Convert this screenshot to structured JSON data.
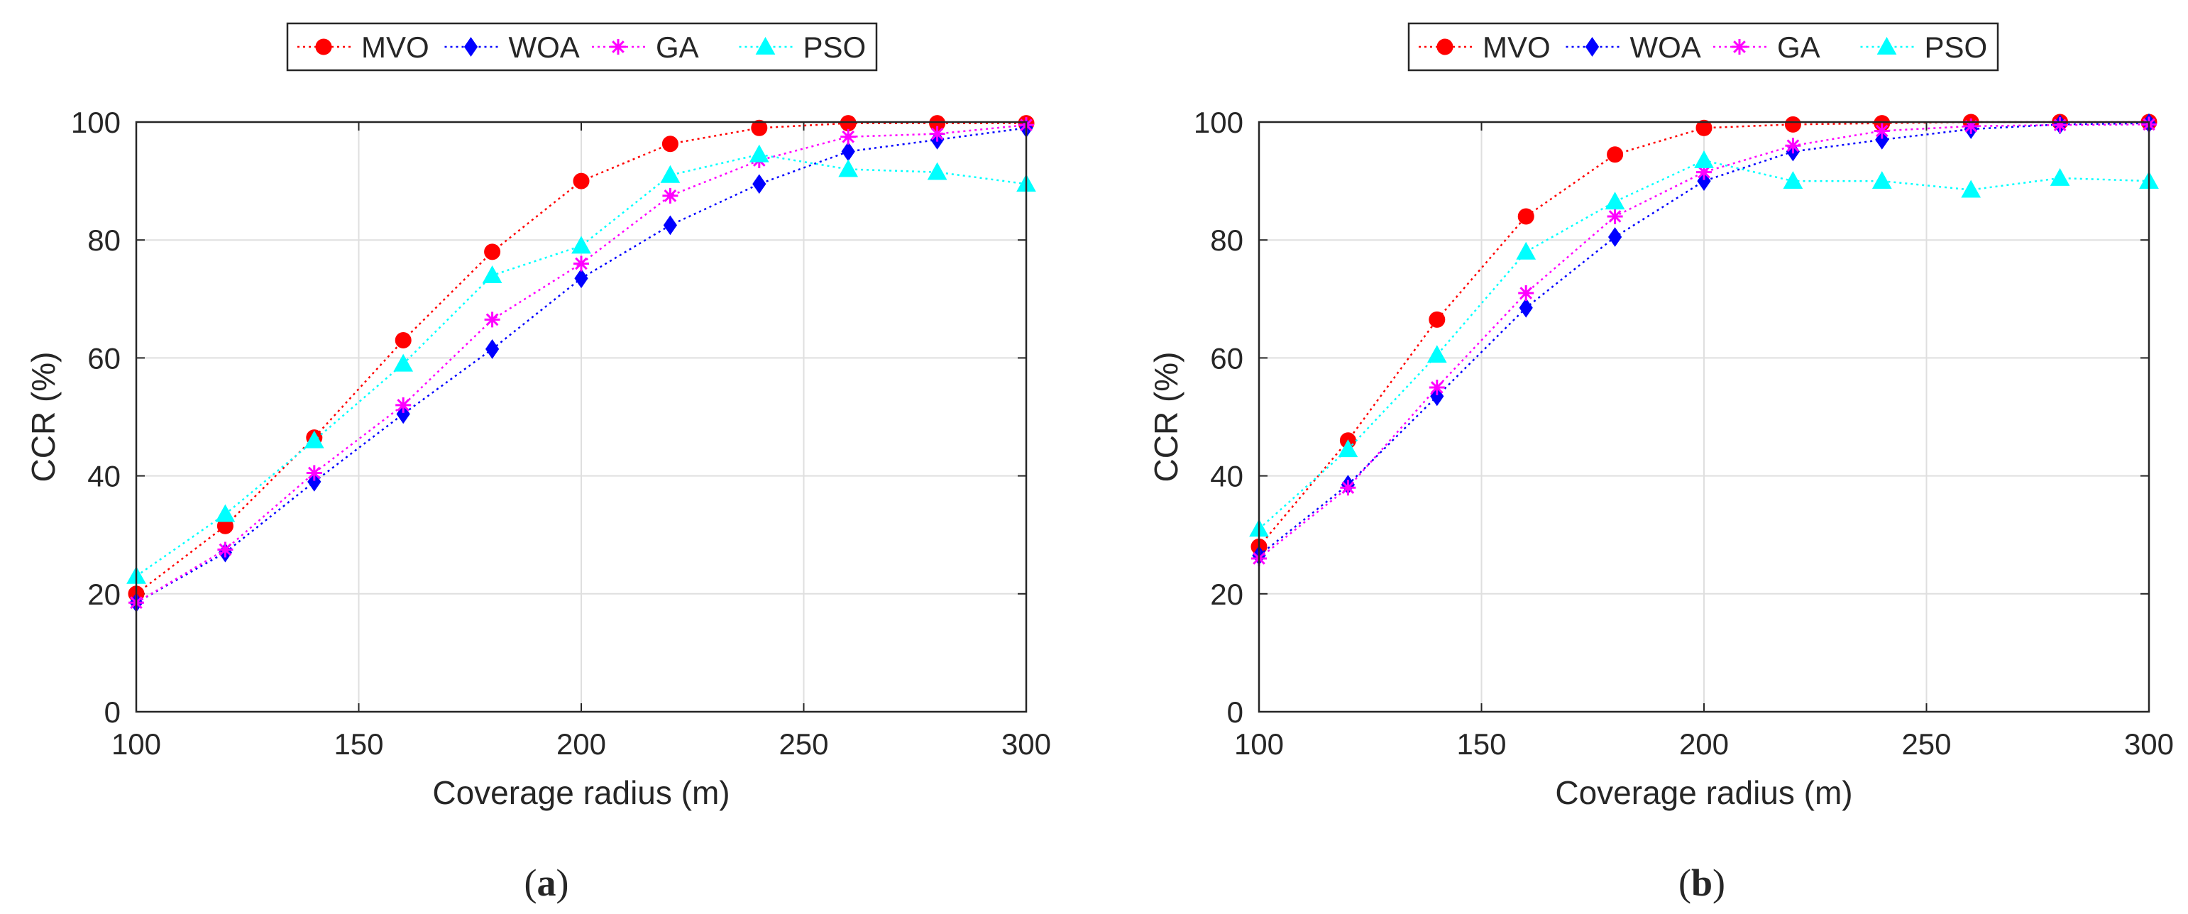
{
  "series_styles": [
    {
      "name": "MVO",
      "color": "#ff0000",
      "marker": "circle"
    },
    {
      "name": "WOA",
      "color": "#0000ff",
      "marker": "diamond"
    },
    {
      "name": "GA",
      "color": "#ff00ff",
      "marker": "asterisk"
    },
    {
      "name": "PSO",
      "color": "#00ffff",
      "marker": "triangle"
    }
  ],
  "chart_data": [
    {
      "type": "line",
      "panel": "a",
      "caption_letter": "a",
      "caption_open": "(",
      "caption_close": ")",
      "xlabel": "Coverage radius (m)",
      "ylabel": "CCR (%)",
      "xlim": [
        100,
        300
      ],
      "ylim": [
        0,
        100
      ],
      "xticks": [
        100,
        150,
        200,
        250,
        300
      ],
      "yticks": [
        0,
        20,
        40,
        60,
        80,
        100
      ],
      "grid": true,
      "legend": "top-center, horizontal",
      "x": [
        100,
        120,
        140,
        160,
        180,
        200,
        220,
        240,
        260,
        280,
        300
      ],
      "series": [
        {
          "name": "MVO",
          "values": [
            20,
            31.5,
            46.5,
            63,
            78,
            90,
            96.3,
            99,
            99.8,
            99.8,
            99.8
          ]
        },
        {
          "name": "WOA",
          "values": [
            18.5,
            27,
            39,
            50.5,
            61.5,
            73.5,
            82.5,
            89.5,
            95,
            97,
            99
          ]
        },
        {
          "name": "GA",
          "values": [
            18.5,
            27.5,
            40.5,
            52,
            66.5,
            76,
            87.5,
            93.5,
            97.5,
            98,
            99.5
          ]
        },
        {
          "name": "PSO",
          "values": [
            23,
            33.5,
            46,
            59,
            74,
            79,
            91,
            94.5,
            92,
            91.5,
            89.5
          ]
        }
      ]
    },
    {
      "type": "line",
      "panel": "b",
      "caption_letter": "b",
      "caption_open": "(",
      "caption_close": ")",
      "xlabel": "Coverage radius (m)",
      "ylabel": "CCR (%)",
      "xlim": [
        100,
        300
      ],
      "ylim": [
        0,
        100
      ],
      "xticks": [
        100,
        150,
        200,
        250,
        300
      ],
      "yticks": [
        0,
        20,
        40,
        60,
        80,
        100
      ],
      "grid": true,
      "legend": "top-center, horizontal",
      "x": [
        100,
        120,
        140,
        160,
        180,
        200,
        220,
        240,
        260,
        280,
        300
      ],
      "series": [
        {
          "name": "MVO",
          "values": [
            28,
            46,
            66.5,
            84,
            94.5,
            99,
            99.6,
            99.8,
            100,
            100,
            100
          ]
        },
        {
          "name": "WOA",
          "values": [
            26.5,
            38.5,
            53.5,
            68.5,
            80.5,
            90,
            95,
            97,
            98.8,
            99.6,
            99.8
          ]
        },
        {
          "name": "GA",
          "values": [
            26,
            38,
            55,
            71,
            84,
            91.5,
            96,
            98.5,
            99.3,
            99.5,
            99.6
          ]
        },
        {
          "name": "PSO",
          "values": [
            31,
            44.5,
            60.5,
            78,
            86.5,
            93.5,
            90,
            90,
            88.5,
            90.5,
            90
          ]
        }
      ]
    }
  ]
}
